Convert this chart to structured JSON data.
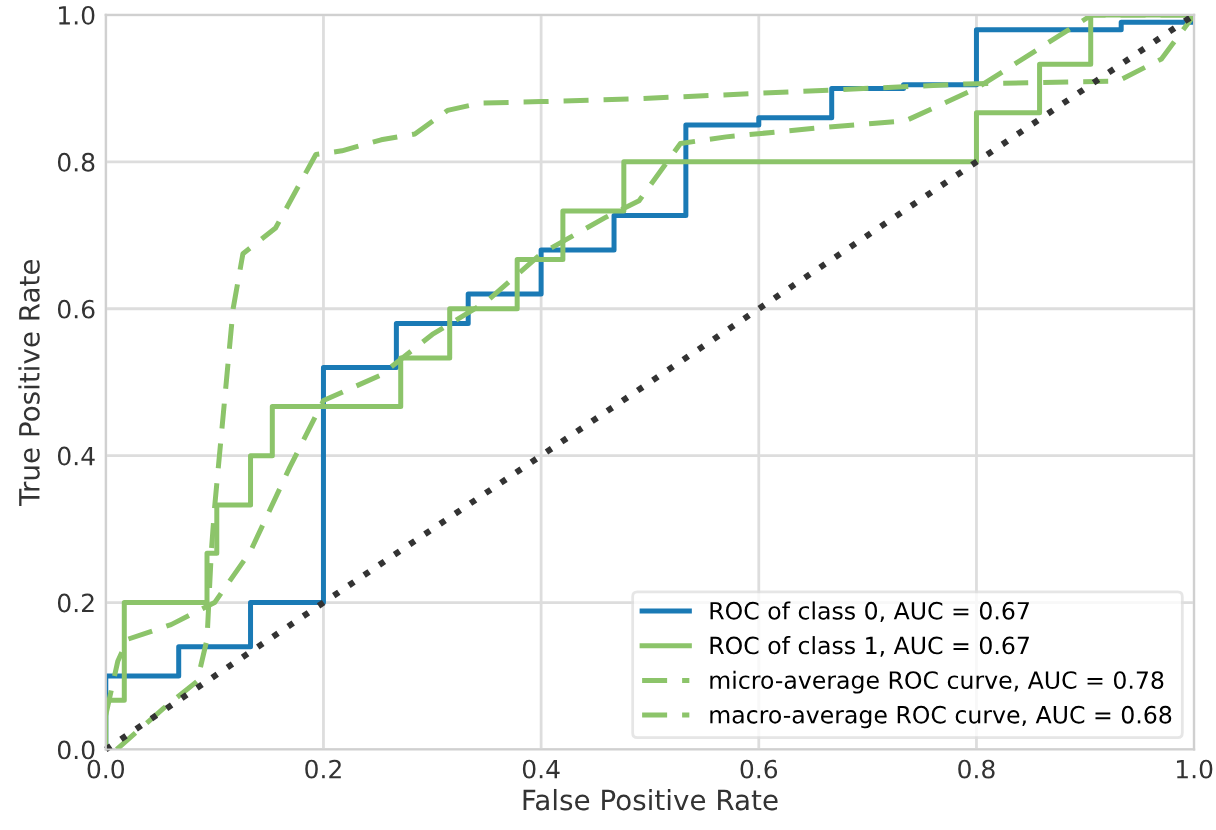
{
  "chart_data": {
    "type": "line",
    "xlabel": "False Positive Rate",
    "ylabel": "True Positive Rate",
    "xlim": [
      0,
      1
    ],
    "ylim": [
      0,
      1
    ],
    "xticks": [
      {
        "value": 0,
        "label": "0.0"
      },
      0.2,
      0.4,
      0.6,
      0.8,
      {
        "value": 1,
        "label": "1.0"
      }
    ],
    "yticks": [
      {
        "value": 0,
        "label": "0.0"
      },
      0.2,
      0.4,
      0.6,
      0.8,
      {
        "value": 1,
        "label": "1.0"
      }
    ],
    "grid": true,
    "legend": "bottom right",
    "marker": "none",
    "series": [
      {
        "name": "ROC of class 0, AUC = 0.67",
        "type": "step",
        "color": "#1a7ab5",
        "line_style": "solid",
        "x": [
          0,
          0,
          0.067,
          0.133,
          0.2,
          0.267,
          0.333,
          0.4,
          0.467,
          0.533,
          0.6,
          0.667,
          0.733,
          0.8,
          0.933,
          1
        ],
        "values": [
          0,
          0.1,
          0.14,
          0.2,
          0.52,
          0.58,
          0.62,
          0.68,
          0.727,
          0.85,
          0.86,
          0.9,
          0.905,
          0.98,
          0.99,
          1
        ]
      },
      {
        "name": "ROC of class 1, AUC = 0.67",
        "type": "step",
        "color": "#8cc46a",
        "line_style": "solid",
        "x": [
          0,
          0,
          0.017,
          0.093,
          0.102,
          0.133,
          0.153,
          0.271,
          0.316,
          0.378,
          0.42,
          0.476,
          0.8,
          0.858,
          0.905,
          1
        ],
        "values": [
          0,
          0.067,
          0.2,
          0.267,
          0.333,
          0.4,
          0.467,
          0.533,
          0.6,
          0.667,
          0.733,
          0.8,
          0.867,
          0.933,
          1,
          1
        ]
      },
      {
        "name": "micro-average ROC curve, AUC = 0.78",
        "color": "#8cc46a",
        "line_style": "dashed",
        "x": [
          0.01,
          0.053,
          0.084,
          0.093,
          0.097,
          0.1,
          0.117,
          0.126,
          0.156,
          0.18,
          0.193,
          0.217,
          0.253,
          0.284,
          0.314,
          0.344,
          0.4,
          0.49,
          0.79,
          0.93,
          0.97,
          1
        ],
        "values": [
          0,
          0.056,
          0.093,
          0.15,
          0.27,
          0.33,
          0.6,
          0.675,
          0.71,
          0.775,
          0.81,
          0.815,
          0.83,
          0.838,
          0.87,
          0.88,
          0.882,
          0.886,
          0.906,
          0.91,
          0.94,
          1
        ]
      },
      {
        "name": "macro-average ROC curve, AUC = 0.68",
        "color": "#8cc46a",
        "line_style": "dashed",
        "x": [
          0,
          0.011,
          0.02,
          0.06,
          0.1,
          0.133,
          0.169,
          0.2,
          0.253,
          0.3,
          0.35,
          0.4,
          0.46,
          0.49,
          0.528,
          0.57,
          0.66,
          0.735,
          0.8,
          0.906,
          1
        ],
        "values": [
          0.047,
          0.12,
          0.15,
          0.17,
          0.2,
          0.27,
          0.384,
          0.475,
          0.51,
          0.565,
          0.61,
          0.675,
          0.725,
          0.747,
          0.825,
          0.834,
          0.847,
          0.856,
          0.9,
          1,
          1
        ]
      },
      {
        "color": "#333333",
        "line_style": "dotted",
        "x": [
          0,
          1
        ],
        "values": [
          0,
          1
        ]
      }
    ]
  }
}
